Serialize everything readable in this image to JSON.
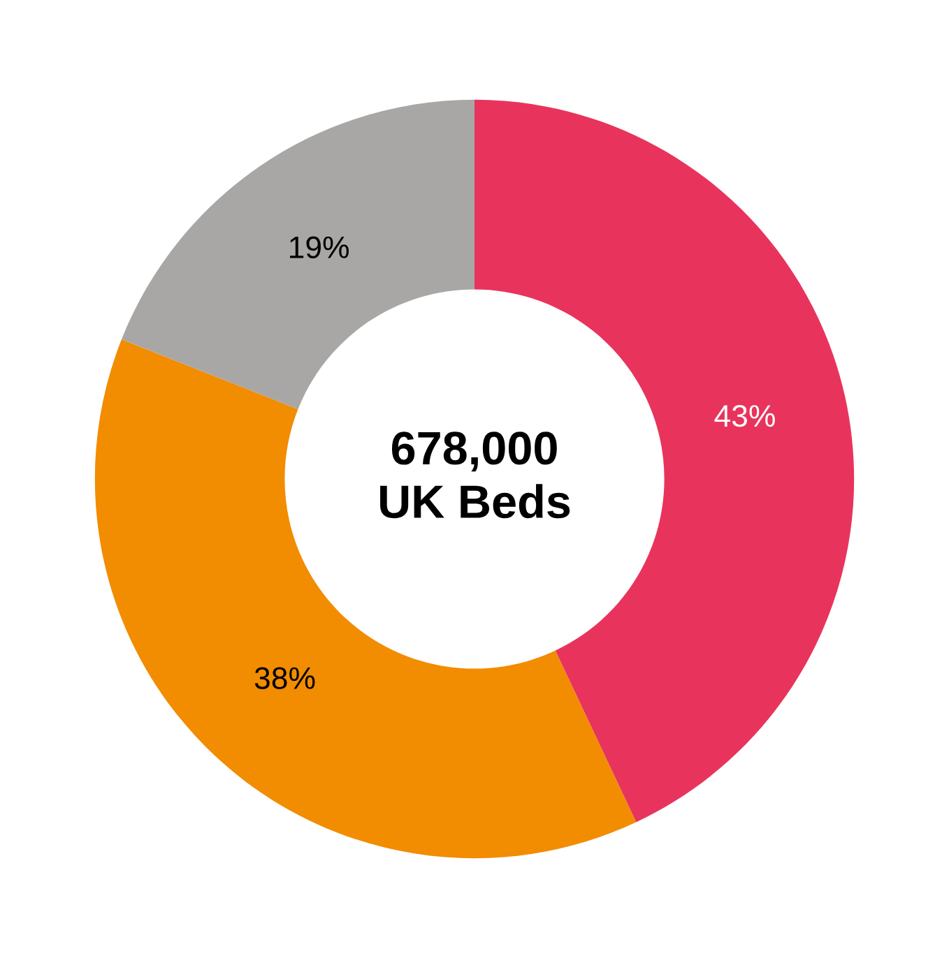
{
  "chart_data": {
    "type": "donut",
    "categories": [
      null,
      null,
      null
    ],
    "values": [
      43,
      38,
      19
    ],
    "colors": [
      "#e8345c",
      "#f28c00",
      "#a8a7a5"
    ],
    "value_labels": [
      "43%",
      "38%",
      "19%"
    ],
    "annotations": [
      "678,000\nUK Beds"
    ]
  }
}
